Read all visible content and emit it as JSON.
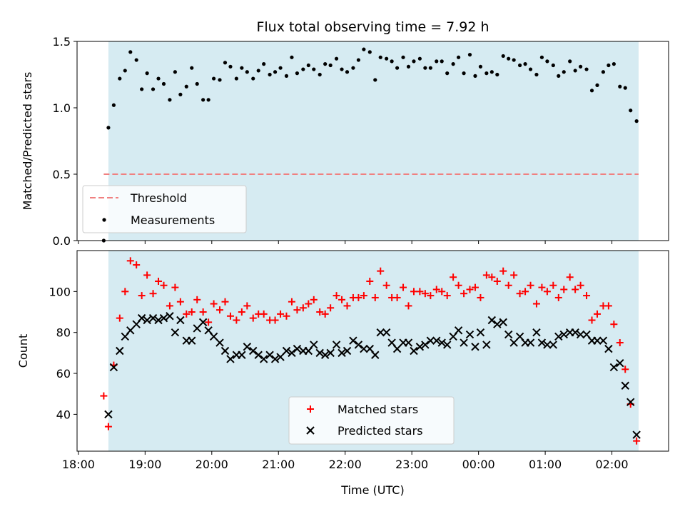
{
  "chart_data": [
    {
      "type": "scatter",
      "title": "Flux total observing time = 7.92 h",
      "xlabel": "",
      "ylabel": "Matched/Predicted stars",
      "ylim": [
        0.0,
        1.5
      ],
      "yticks": [
        "0.0",
        "0.5",
        "1.0",
        "1.5"
      ],
      "xlim_hours": [
        17.98,
        26.85
      ],
      "observing_window_hours": [
        18.45,
        26.4
      ],
      "threshold": 0.5,
      "threshold_x_hours": [
        18.38,
        26.4
      ],
      "grid": false,
      "legend": {
        "position": "lower-left",
        "entries": [
          "Threshold",
          "Measurements"
        ]
      },
      "series": [
        {
          "name": "Measurements",
          "x": [
            18.38,
            18.45,
            18.53,
            18.62,
            18.7,
            18.78,
            18.87,
            18.95,
            19.03,
            19.12,
            19.2,
            19.28,
            19.37,
            19.45,
            19.53,
            19.62,
            19.7,
            19.78,
            19.87,
            19.95,
            20.03,
            20.12,
            20.2,
            20.28,
            20.37,
            20.45,
            20.53,
            20.62,
            20.7,
            20.78,
            20.87,
            20.95,
            21.03,
            21.12,
            21.2,
            21.28,
            21.37,
            21.45,
            21.53,
            21.62,
            21.7,
            21.78,
            21.87,
            21.95,
            22.03,
            22.12,
            22.2,
            22.28,
            22.37,
            22.45,
            22.53,
            22.62,
            22.7,
            22.78,
            22.87,
            22.95,
            23.03,
            23.12,
            23.2,
            23.28,
            23.37,
            23.45,
            23.53,
            23.62,
            23.7,
            23.78,
            23.87,
            23.95,
            24.03,
            24.12,
            24.2,
            24.28,
            24.37,
            24.45,
            24.53,
            24.62,
            24.7,
            24.78,
            24.87,
            24.95,
            25.03,
            25.12,
            25.2,
            25.28,
            25.37,
            25.45,
            25.53,
            25.62,
            25.7,
            25.78,
            25.87,
            25.95,
            26.03,
            26.12,
            26.2,
            26.28,
            26.37
          ],
          "y": [
            0.0,
            0.85,
            1.02,
            1.22,
            1.28,
            1.42,
            1.36,
            1.14,
            1.26,
            1.14,
            1.22,
            1.18,
            1.06,
            1.27,
            1.1,
            1.16,
            1.3,
            1.18,
            1.06,
            1.06,
            1.22,
            1.21,
            1.34,
            1.31,
            1.22,
            1.3,
            1.27,
            1.22,
            1.28,
            1.33,
            1.25,
            1.27,
            1.3,
            1.24,
            1.38,
            1.26,
            1.29,
            1.32,
            1.29,
            1.25,
            1.33,
            1.32,
            1.37,
            1.29,
            1.27,
            1.3,
            1.36,
            1.44,
            1.42,
            1.21,
            1.38,
            1.37,
            1.35,
            1.3,
            1.38,
            1.31,
            1.35,
            1.37,
            1.3,
            1.3,
            1.35,
            1.35,
            1.26,
            1.33,
            1.38,
            1.26,
            1.4,
            1.24,
            1.31,
            1.26,
            1.27,
            1.25,
            1.39,
            1.37,
            1.36,
            1.32,
            1.33,
            1.29,
            1.25,
            1.38,
            1.35,
            1.32,
            1.24,
            1.27,
            1.35,
            1.28,
            1.31,
            1.29,
            1.13,
            1.17,
            1.27,
            1.32,
            1.33,
            1.16,
            1.15,
            0.98,
            0.9
          ]
        }
      ]
    },
    {
      "type": "scatter",
      "title": "",
      "xlabel": "Time (UTC)",
      "ylabel": "Count",
      "ylim": [
        22,
        120
      ],
      "yticks": [
        "40",
        "60",
        "80",
        "100"
      ],
      "xticks": [
        "18:00",
        "19:00",
        "20:00",
        "21:00",
        "22:00",
        "23:00",
        "00:00",
        "01:00",
        "02:00"
      ],
      "xlim_hours": [
        17.98,
        26.85
      ],
      "observing_window_hours": [
        18.45,
        26.4
      ],
      "grid": false,
      "legend": {
        "position": "lower-center",
        "entries": [
          "Matched stars",
          "Predicted stars"
        ]
      },
      "series": [
        {
          "name": "Matched stars",
          "marker": "+",
          "color": "#ff0000",
          "x": [
            18.38,
            18.45,
            18.53,
            18.62,
            18.7,
            18.78,
            18.87,
            18.95,
            19.03,
            19.12,
            19.2,
            19.28,
            19.37,
            19.45,
            19.53,
            19.62,
            19.7,
            19.78,
            19.87,
            19.95,
            20.03,
            20.12,
            20.2,
            20.28,
            20.37,
            20.45,
            20.53,
            20.62,
            20.7,
            20.78,
            20.87,
            20.95,
            21.03,
            21.12,
            21.2,
            21.28,
            21.37,
            21.45,
            21.53,
            21.62,
            21.7,
            21.78,
            21.87,
            21.95,
            22.03,
            22.12,
            22.2,
            22.28,
            22.37,
            22.45,
            22.53,
            22.62,
            22.7,
            22.78,
            22.87,
            22.95,
            23.03,
            23.12,
            23.2,
            23.28,
            23.37,
            23.45,
            23.53,
            23.62,
            23.7,
            23.78,
            23.87,
            23.95,
            24.03,
            24.12,
            24.2,
            24.28,
            24.37,
            24.45,
            24.53,
            24.62,
            24.7,
            24.78,
            24.87,
            24.95,
            25.03,
            25.12,
            25.2,
            25.28,
            25.37,
            25.45,
            25.53,
            25.62,
            25.7,
            25.78,
            25.87,
            25.95,
            26.03,
            26.12,
            26.2,
            26.28,
            26.37
          ],
          "y": [
            49,
            34,
            64,
            87,
            100,
            115,
            113,
            98,
            108,
            99,
            105,
            103,
            93,
            102,
            95,
            89,
            90,
            96,
            90,
            85,
            94,
            91,
            95,
            88,
            86,
            90,
            93,
            87,
            89,
            89,
            86,
            86,
            89,
            88,
            95,
            91,
            92,
            94,
            96,
            90,
            89,
            92,
            98,
            96,
            93,
            97,
            97,
            98,
            105,
            97,
            110,
            103,
            97,
            97,
            102,
            93,
            100,
            100,
            99,
            98,
            101,
            100,
            98,
            107,
            103,
            99,
            101,
            102,
            97,
            108,
            107,
            105,
            110,
            103,
            108,
            99,
            100,
            103,
            94,
            102,
            100,
            103,
            97,
            101,
            107,
            101,
            103,
            98,
            86,
            89,
            93,
            93,
            84,
            75,
            62,
            45,
            27
          ]
        },
        {
          "name": "Predicted stars",
          "marker": "x",
          "color": "#000000",
          "x": [
            18.45,
            18.53,
            18.62,
            18.7,
            18.78,
            18.87,
            18.95,
            19.03,
            19.12,
            19.2,
            19.28,
            19.37,
            19.45,
            19.53,
            19.62,
            19.7,
            19.78,
            19.87,
            19.95,
            20.03,
            20.12,
            20.2,
            20.28,
            20.37,
            20.45,
            20.53,
            20.62,
            20.7,
            20.78,
            20.87,
            20.95,
            21.03,
            21.12,
            21.2,
            21.28,
            21.37,
            21.45,
            21.53,
            21.62,
            21.7,
            21.78,
            21.87,
            21.95,
            22.03,
            22.12,
            22.2,
            22.28,
            22.37,
            22.45,
            22.53,
            22.62,
            22.7,
            22.78,
            22.87,
            22.95,
            23.03,
            23.12,
            23.2,
            23.28,
            23.37,
            23.45,
            23.53,
            23.62,
            23.7,
            23.78,
            23.87,
            23.95,
            24.03,
            24.12,
            24.2,
            24.28,
            24.37,
            24.45,
            24.53,
            24.62,
            24.7,
            24.78,
            24.87,
            24.95,
            25.03,
            25.12,
            25.2,
            25.28,
            25.37,
            25.45,
            25.53,
            25.62,
            25.7,
            25.78,
            25.87,
            25.95,
            26.03,
            26.12,
            26.2,
            26.28,
            26.37
          ],
          "y": [
            40,
            63,
            71,
            78,
            81,
            84,
            87,
            86,
            87,
            86,
            87,
            88,
            80,
            86,
            76,
            76,
            82,
            85,
            81,
            78,
            75,
            71,
            67,
            69,
            69,
            73,
            71,
            69,
            67,
            69,
            67,
            68,
            71,
            70,
            72,
            71,
            71,
            74,
            70,
            69,
            70,
            74,
            70,
            71,
            76,
            74,
            72,
            72,
            69,
            80,
            80,
            75,
            72,
            75,
            75,
            71,
            73,
            74,
            76,
            76,
            75,
            74,
            78,
            81,
            75,
            79,
            73,
            80,
            74,
            86,
            84,
            85,
            79,
            75,
            78,
            75,
            75,
            80,
            75,
            74,
            74,
            78,
            79,
            80,
            80,
            79,
            79,
            76,
            76,
            76,
            72,
            63,
            65,
            54,
            46,
            30
          ]
        }
      ]
    }
  ],
  "colors": {
    "shade": "#add8e6",
    "threshold": "#f08080",
    "matched": "#ff0000",
    "predicted": "#000000",
    "measurements": "#000000"
  }
}
